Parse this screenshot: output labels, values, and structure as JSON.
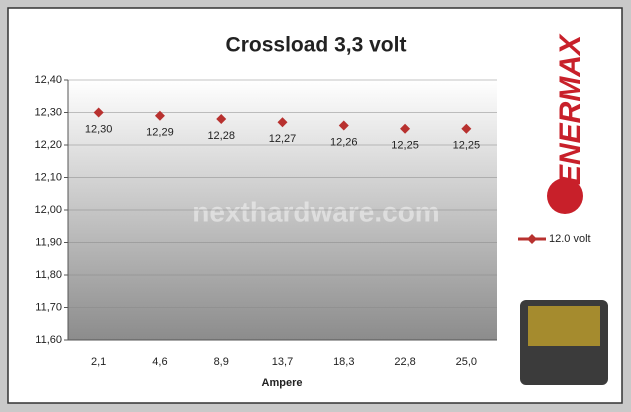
{
  "chart_data": {
    "type": "line",
    "title": "Crossload 3,3 volt",
    "x_label": "Ampere",
    "categories": [
      "2,1",
      "4,6",
      "8,9",
      "13,7",
      "18,3",
      "22,8",
      "25,0"
    ],
    "series": [
      {
        "name": "12.0 volt",
        "color": "#b8312f",
        "values": [
          12.3,
          12.29,
          12.28,
          12.27,
          12.26,
          12.25,
          12.25
        ],
        "value_labels": [
          "12,30",
          "12,29",
          "12,28",
          "12,27",
          "12,26",
          "12,25",
          "12,25"
        ]
      }
    ],
    "ylim": [
      11.6,
      12.4
    ],
    "yticks": [
      {
        "value": 11.6,
        "label": "11,60"
      },
      {
        "value": 11.7,
        "label": "11,70"
      },
      {
        "value": 11.8,
        "label": "11,80"
      },
      {
        "value": 11.9,
        "label": "11,90"
      },
      {
        "value": 12.0,
        "label": "12,00"
      },
      {
        "value": 12.1,
        "label": "12,10"
      },
      {
        "value": 12.2,
        "label": "12,20"
      },
      {
        "value": 12.3,
        "label": "12,30"
      },
      {
        "value": 12.4,
        "label": "12,40"
      }
    ],
    "grid": true,
    "legend": "right",
    "watermark": "nexthardware.com",
    "brand": "ENERMAX"
  }
}
